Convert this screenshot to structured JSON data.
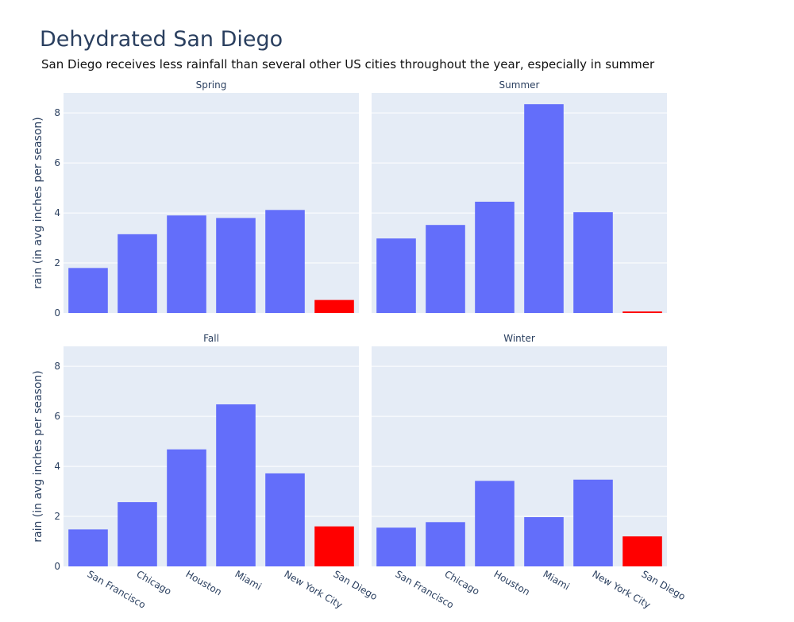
{
  "chart_data": {
    "type": "bar",
    "title": "Dehydrated San Diego",
    "subtitle": "San Diego receives less rainfall than several other US cities throughout the year, especially in summer",
    "ylabel": "rain (in avg inches per season)",
    "ylim": [
      0,
      8.8
    ],
    "yticks": [
      "0",
      "2",
      "4",
      "6",
      "8"
    ],
    "categories": [
      "San Francisco",
      "Chicago",
      "Houston",
      "Miami",
      "New York City",
      "San Diego"
    ],
    "highlight_category": "San Diego",
    "colors": {
      "bar": "#636efa",
      "highlight": "#ff0000",
      "plot_bg": "#e5ecf6",
      "grid": "#ffffff",
      "text": "#2a3f5f"
    },
    "panels": [
      {
        "title": "Spring",
        "values": [
          1.8,
          3.15,
          3.9,
          3.8,
          4.12,
          0.52
        ]
      },
      {
        "title": "Summer",
        "values": [
          2.98,
          3.52,
          4.45,
          8.35,
          4.03,
          0.06
        ]
      },
      {
        "title": "Fall",
        "values": [
          1.48,
          2.57,
          4.68,
          6.48,
          3.72,
          1.6
        ]
      },
      {
        "title": "Winter",
        "values": [
          1.55,
          1.77,
          3.42,
          1.97,
          3.47,
          1.2
        ]
      }
    ]
  }
}
